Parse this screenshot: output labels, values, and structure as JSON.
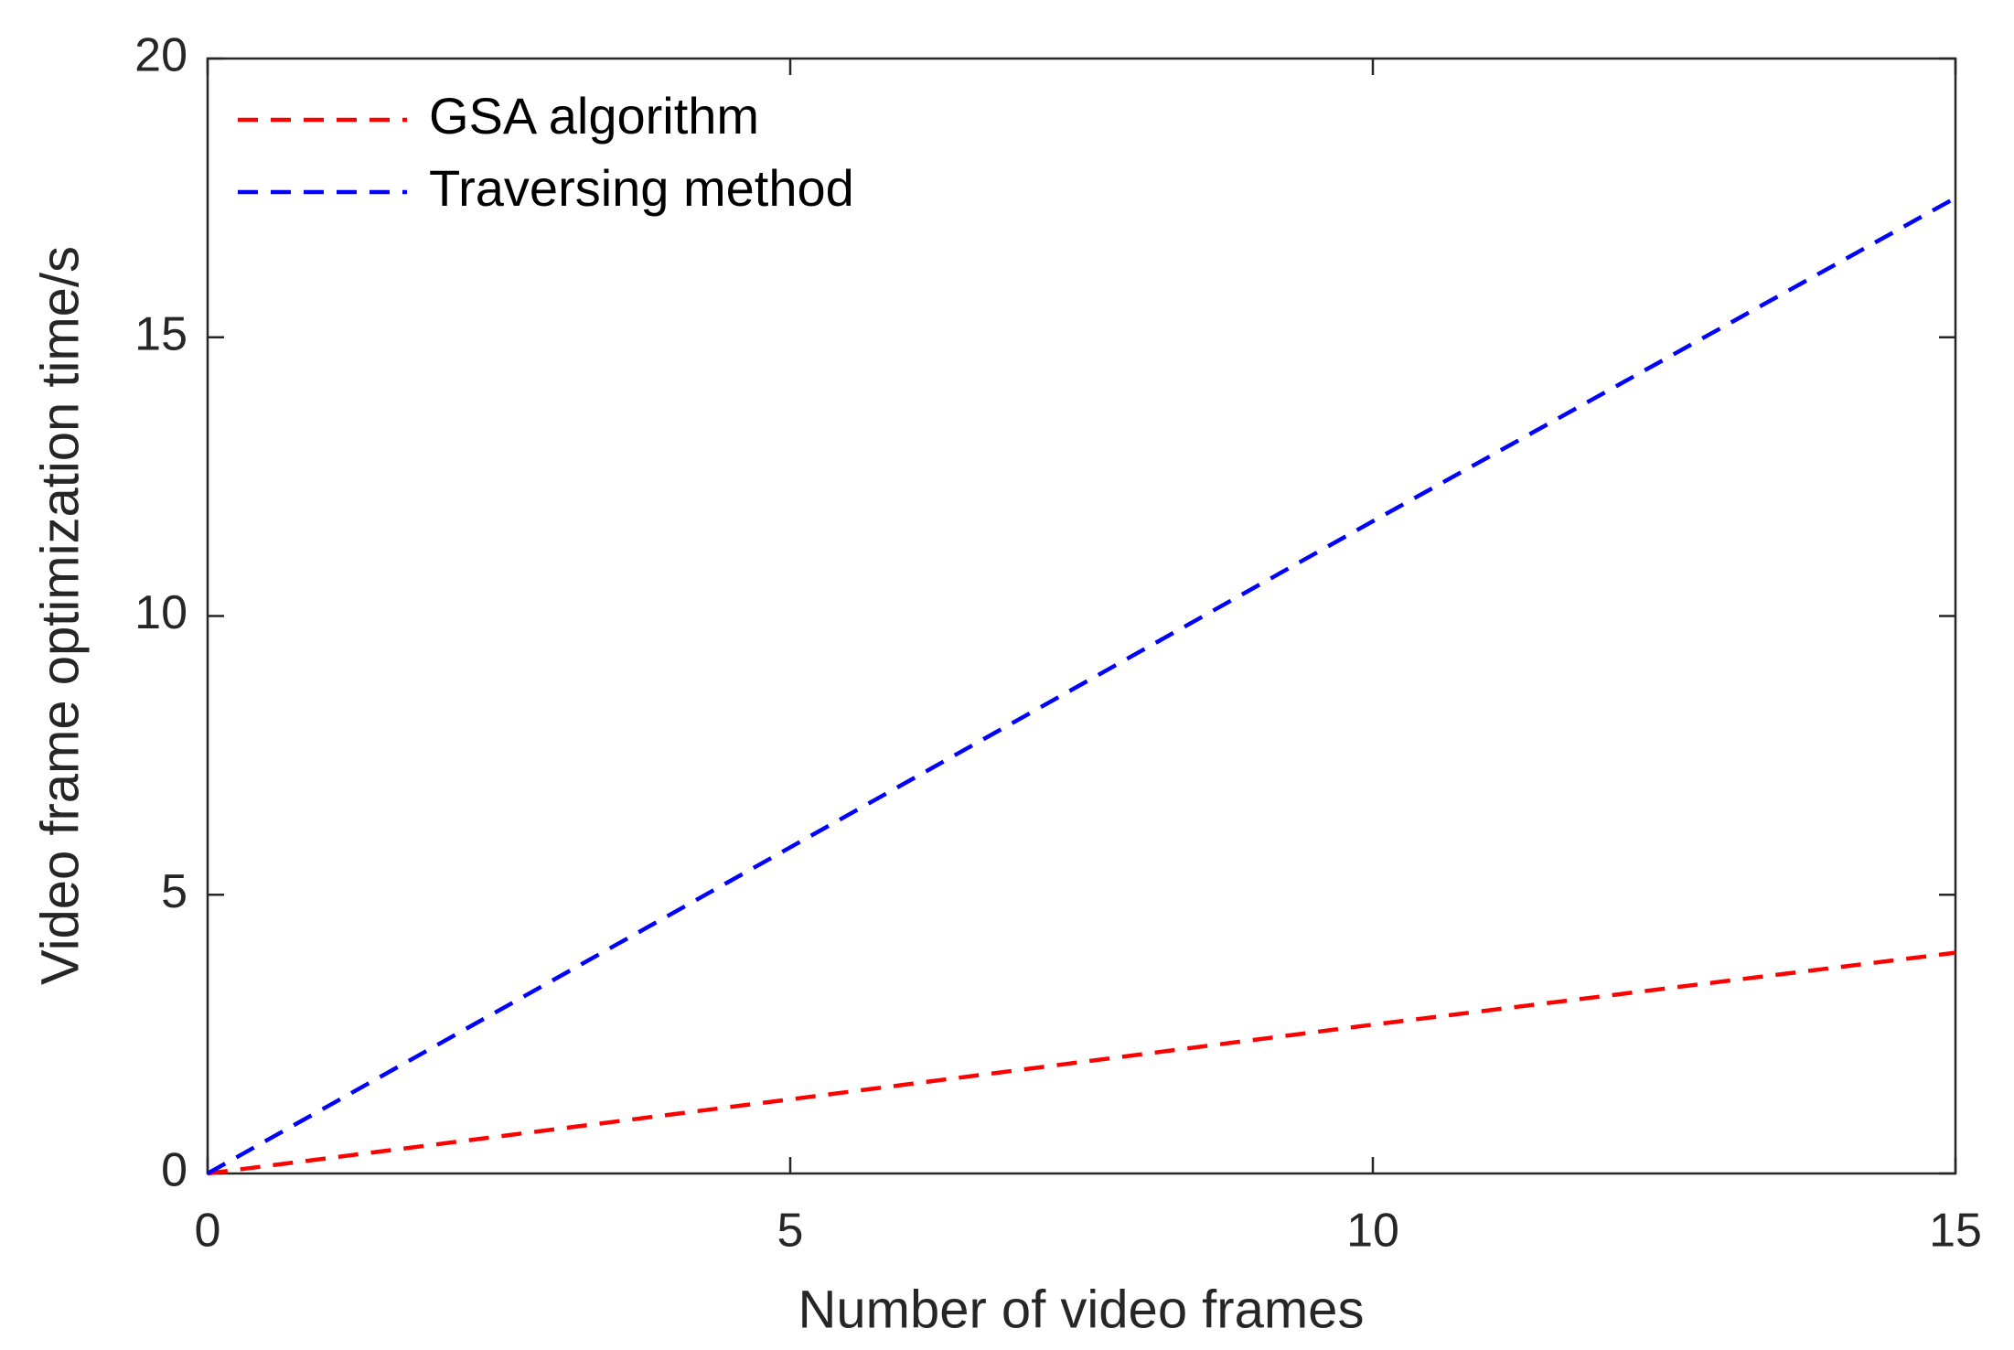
{
  "chart_data": {
    "type": "line",
    "xlabel": "Number of video frames",
    "ylabel": "Video frame optimization time/s",
    "x": [
      0,
      5,
      10,
      15
    ],
    "series": [
      {
        "name": "GSA algorithm",
        "color": "#ff0000",
        "values": [
          0,
          1.33,
          2.67,
          3.96
        ]
      },
      {
        "name": "Traversing method",
        "color": "#0000ff",
        "values": [
          0,
          5.85,
          11.7,
          17.5
        ]
      }
    ],
    "xlim": [
      0,
      15
    ],
    "xticks": [
      0,
      5,
      10,
      15
    ],
    "ylim": [
      0,
      20
    ],
    "yticks": [
      0,
      5,
      10,
      15,
      20
    ],
    "grid": false,
    "legend": "upper left",
    "line_style": "dashed"
  }
}
